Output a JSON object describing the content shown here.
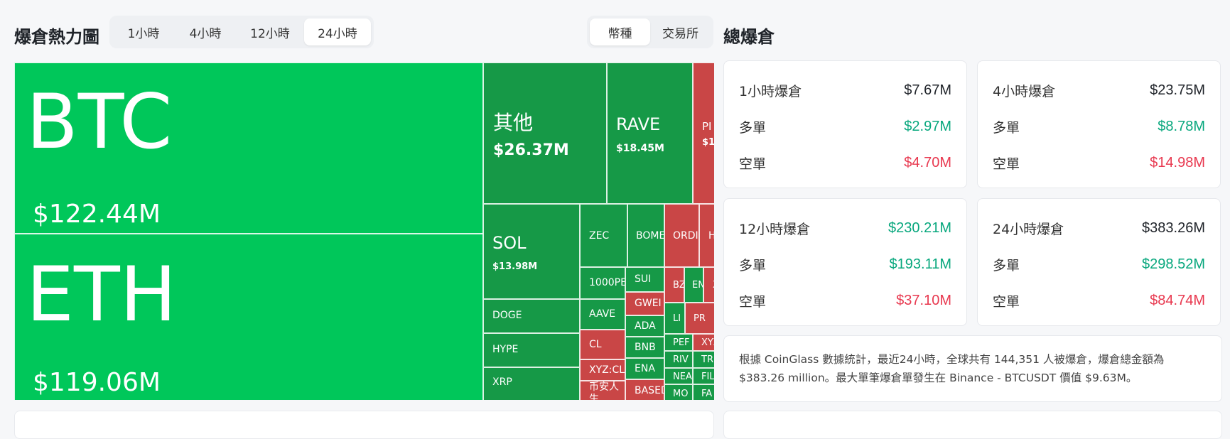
{
  "heatmap": {
    "title": "爆倉熱力圖",
    "time_tabs": [
      "1小時",
      "4小時",
      "12小時",
      "24小時"
    ],
    "active_time_tab": "24小時",
    "type_tabs": [
      "幣種",
      "交易所"
    ],
    "active_type_tab": "幣種",
    "cells": [
      {
        "symbol": "BTC",
        "value": "$122.44M",
        "side": "long"
      },
      {
        "symbol": "ETH",
        "value": "$119.06M",
        "side": "long"
      },
      {
        "symbol": "其他",
        "value": "$26.37M",
        "side": "long"
      },
      {
        "symbol": "RAVE",
        "value": "$18.45M",
        "side": "long"
      },
      {
        "symbol": "PI",
        "value": "$1",
        "side": "short"
      },
      {
        "symbol": "SOL",
        "value": "$13.98M",
        "side": "long"
      },
      {
        "symbol": "ZEC",
        "value": "",
        "side": "long"
      },
      {
        "symbol": "BOME",
        "value": "",
        "side": "long"
      },
      {
        "symbol": "ORDI",
        "value": "",
        "side": "short"
      },
      {
        "symbol": "H",
        "value": "",
        "side": "short"
      },
      {
        "symbol": "1000PE",
        "value": "",
        "side": "long"
      },
      {
        "symbol": "SUI",
        "value": "",
        "side": "long"
      },
      {
        "symbol": "BZ",
        "value": "",
        "side": "short"
      },
      {
        "symbol": "EN",
        "value": "",
        "side": "long"
      },
      {
        "symbol": "X",
        "value": "",
        "side": "short"
      },
      {
        "symbol": "DOGE",
        "value": "",
        "side": "long"
      },
      {
        "symbol": "AAVE",
        "value": "",
        "side": "long"
      },
      {
        "symbol": "GWEI",
        "value": "",
        "side": "short"
      },
      {
        "symbol": "LI",
        "value": "",
        "side": "long"
      },
      {
        "symbol": "PR",
        "value": "",
        "side": "short"
      },
      {
        "symbol": "ADA",
        "value": "",
        "side": "long"
      },
      {
        "symbol": "HYPE",
        "value": "",
        "side": "long"
      },
      {
        "symbol": "CL",
        "value": "",
        "side": "short"
      },
      {
        "symbol": "BNB",
        "value": "",
        "side": "long"
      },
      {
        "symbol": "PEF",
        "value": "",
        "side": "long"
      },
      {
        "symbol": "XYZ",
        "value": "",
        "side": "short"
      },
      {
        "symbol": "RIV",
        "value": "",
        "side": "long"
      },
      {
        "symbol": "TR",
        "value": "",
        "side": "long"
      },
      {
        "symbol": "XYZ:CL",
        "value": "",
        "side": "short"
      },
      {
        "symbol": "ENA",
        "value": "",
        "side": "long"
      },
      {
        "symbol": "NEA",
        "value": "",
        "side": "long"
      },
      {
        "symbol": "FIL",
        "value": "",
        "side": "long"
      },
      {
        "symbol": "XRP",
        "value": "",
        "side": "long"
      },
      {
        "symbol": "币安人生",
        "value": "",
        "side": "short"
      },
      {
        "symbol": "BASED",
        "value": "",
        "side": "short"
      },
      {
        "symbol": "MO",
        "value": "",
        "side": "long"
      },
      {
        "symbol": "FA",
        "value": "",
        "side": "long"
      }
    ]
  },
  "totals": {
    "title": "總爆倉",
    "cards": [
      {
        "label": "1小時爆倉",
        "total": "$7.67M",
        "long_label": "多單",
        "long": "$2.97M",
        "short_label": "空單",
        "short": "$4.70M"
      },
      {
        "label": "4小時爆倉",
        "total": "$23.75M",
        "long_label": "多單",
        "long": "$8.78M",
        "short_label": "空單",
        "short": "$14.98M"
      },
      {
        "label": "12小時爆倉",
        "total": "$230.21M",
        "long_label": "多單",
        "long": "$193.11M",
        "short_label": "空單",
        "short": "$37.10M"
      },
      {
        "label": "24小時爆倉",
        "total": "$383.26M",
        "long_label": "多單",
        "long": "$298.52M",
        "short_label": "空單",
        "short": "$84.74M"
      }
    ],
    "summary": "根據 CoinGlass 數據統計，最近24小時，全球共有 144,351 人被爆倉，爆倉總金額為 $383.26 million。最大單筆爆倉單發生在 Binance - BTCUSDT 價值 $9.63M。"
  },
  "colors": {
    "long_green": "#00c75a",
    "long_green_dark": "#169947",
    "short_red": "#c94646",
    "num_green": "#07a77d",
    "num_red": "#e8384f"
  }
}
